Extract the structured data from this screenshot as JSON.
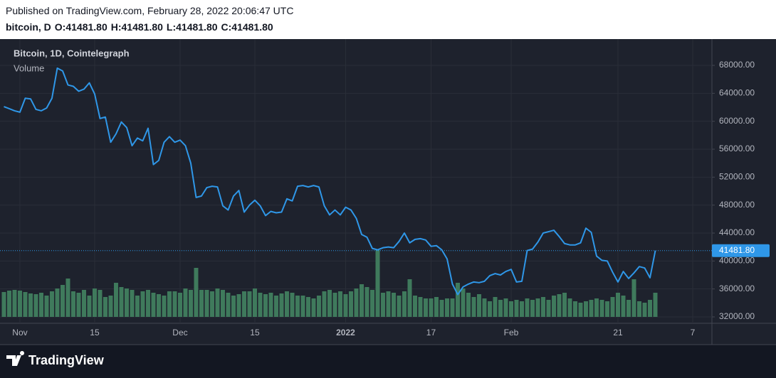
{
  "header": {
    "published": "Published on TradingView.com, February 28, 2022 20:06:47 UTC",
    "symbol": "bitcoin, D",
    "ohlc": [
      "O:41481.80",
      "H:41481.80",
      "L:41481.80",
      "C:41481.80"
    ]
  },
  "chart_data": {
    "type": "line",
    "xlim": [
      -0.73,
      132.6
    ],
    "xticks": [
      {
        "value": 3,
        "label": "Nov"
      },
      {
        "value": 17,
        "label": "15"
      },
      {
        "value": 33,
        "label": "Dec"
      },
      {
        "value": 47,
        "label": "15"
      },
      {
        "value": 64,
        "label": "2022"
      },
      {
        "value": 80,
        "label": "17"
      },
      {
        "value": 95,
        "label": "Feb"
      },
      {
        "value": 115,
        "label": "21"
      },
      {
        "value": 129,
        "label": "7"
      }
    ],
    "ylim": [
      31085,
      71763
    ],
    "yticks": [
      {
        "value": 32000,
        "label": "32000.00"
      },
      {
        "value": 36000,
        "label": "36000.00"
      },
      {
        "value": 40000,
        "label": "40000.00"
      },
      {
        "value": 44000,
        "label": "44000.00"
      },
      {
        "value": 48000,
        "label": "48000.00"
      },
      {
        "value": 52000,
        "label": "52000.00"
      },
      {
        "value": 56000,
        "label": "56000.00"
      },
      {
        "value": 60000,
        "label": "60000.00"
      },
      {
        "value": 64000,
        "label": "64000.00"
      },
      {
        "value": 68000,
        "label": "68000.00"
      }
    ],
    "grid": true,
    "series": [
      {
        "name": "Bitcoin, 1D, Cointelegraph",
        "color": "#2f97e8",
        "price_label": "41481.80",
        "values": [
          62100,
          61800,
          61500,
          61300,
          63300,
          63200,
          61700,
          61500,
          61900,
          63300,
          67600,
          67200,
          65200,
          65000,
          64300,
          64600,
          65500,
          63900,
          60400,
          60600,
          57000,
          58200,
          59900,
          59100,
          56500,
          57600,
          57200,
          59000,
          53800,
          54400,
          57000,
          57800,
          57000,
          57300,
          56500,
          54000,
          49100,
          49300,
          50500,
          50700,
          50600,
          47900,
          47300,
          49300,
          50100,
          47000,
          48000,
          48700,
          47900,
          46500,
          47100,
          46900,
          47000,
          48900,
          48600,
          50700,
          50800,
          50600,
          50800,
          50600,
          47900,
          46600,
          47300,
          46600,
          47700,
          47300,
          46100,
          43800,
          43400,
          41800,
          41600,
          41900,
          42000,
          41900,
          42800,
          44000,
          42600,
          43100,
          43200,
          43000,
          42100,
          42200,
          41600,
          40300,
          36700,
          35200,
          36300,
          36700,
          37000,
          36900,
          37100,
          37900,
          38200,
          38000,
          38500,
          38800,
          37000,
          37100,
          41500,
          41700,
          42700,
          44000,
          44200,
          44400,
          43500,
          42500,
          42300,
          42300,
          42600,
          44700,
          44100,
          40700,
          40100,
          40000,
          38400,
          37000,
          38500,
          37500,
          38300,
          39200,
          39000,
          37600,
          41481.8
        ]
      },
      {
        "name": "Volume",
        "color": "#3f7a5c",
        "values": [
          35,
          37,
          38,
          37,
          35,
          33,
          32,
          34,
          30,
          36,
          40,
          45,
          54,
          36,
          34,
          38,
          30,
          40,
          38,
          28,
          30,
          48,
          42,
          40,
          38,
          30,
          36,
          38,
          34,
          32,
          30,
          36,
          36,
          34,
          40,
          38,
          69,
          38,
          38,
          36,
          40,
          38,
          34,
          30,
          32,
          36,
          36,
          40,
          34,
          32,
          34,
          30,
          33,
          36,
          34,
          30,
          30,
          28,
          26,
          30,
          36,
          38,
          34,
          36,
          32,
          36,
          40,
          46,
          42,
          38,
          94,
          34,
          36,
          34,
          30,
          36,
          53,
          30,
          28,
          26,
          26,
          28,
          24,
          26,
          26,
          48,
          40,
          34,
          28,
          32,
          26,
          22,
          28,
          24,
          26,
          22,
          24,
          22,
          26,
          24,
          26,
          28,
          24,
          30,
          32,
          34,
          26,
          22,
          20,
          22,
          24,
          26,
          24,
          22,
          28,
          34,
          30,
          24,
          53,
          22,
          20,
          24,
          34
        ]
      }
    ]
  },
  "footer": {
    "brand": "TradingView"
  }
}
